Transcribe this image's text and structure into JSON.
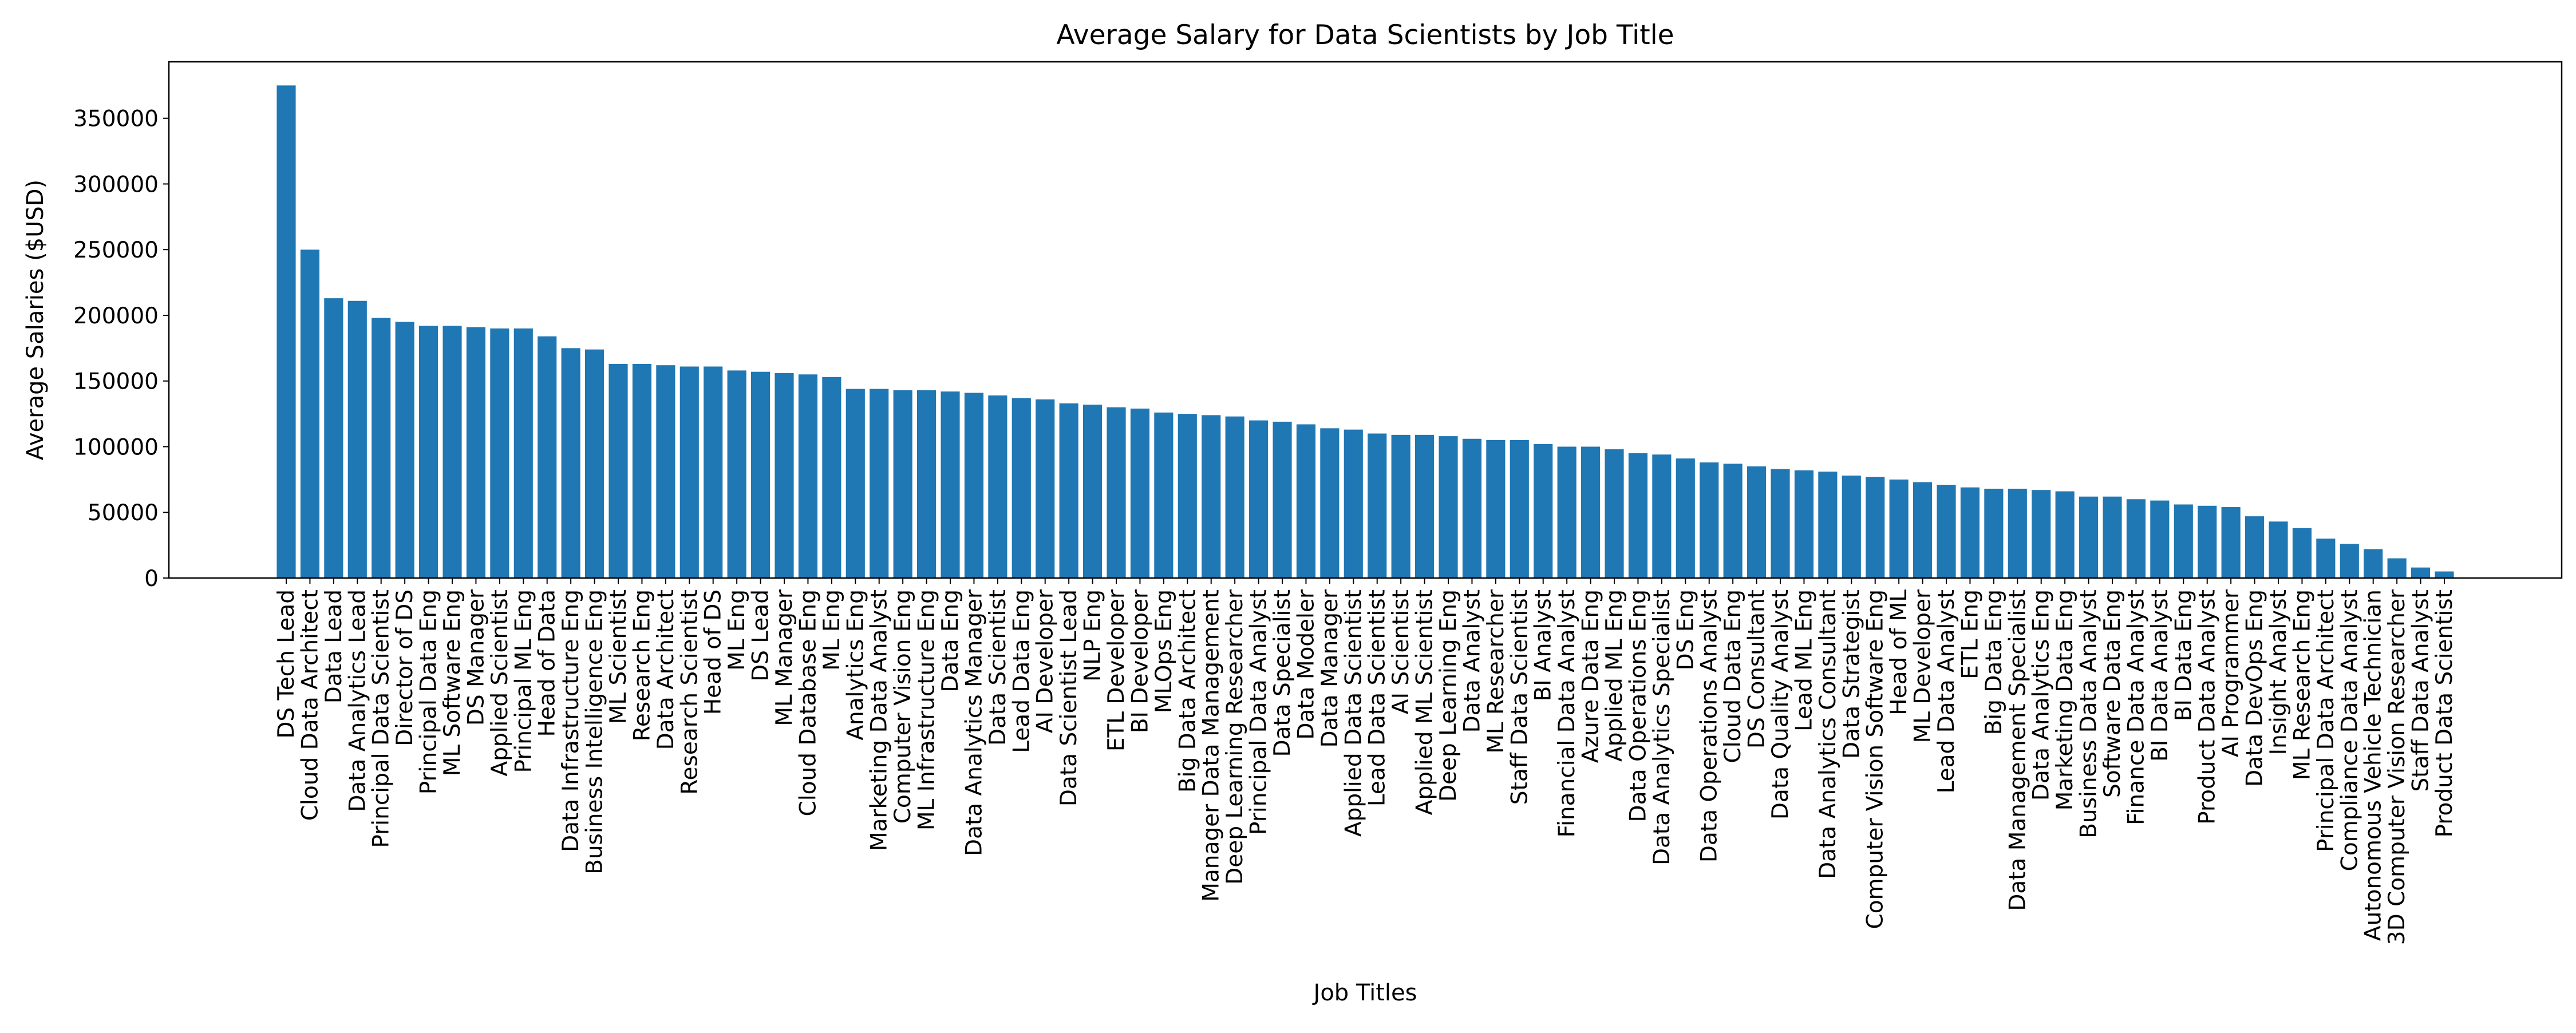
{
  "chart_data": {
    "type": "bar",
    "title": "Average Salary for Data Scientists by Job Title",
    "xlabel": "Job Titles",
    "ylabel": "Average Salaries ($USD)",
    "ylim": [
      0,
      393000
    ],
    "yticks": [
      "0",
      "50000",
      "100000",
      "150000",
      "200000",
      "250000",
      "300000",
      "350000"
    ],
    "bar_color": "#1f77b4",
    "grid": false,
    "categories": [
      "DS Tech Lead",
      "Cloud Data Architect",
      "Data Lead",
      "Data Analytics Lead",
      "Principal Data Scientist",
      "Director of DS",
      "Principal Data Eng",
      "ML Software Eng",
      "DS Manager",
      "Applied Scientist",
      "Principal ML Eng",
      "Head of Data",
      "Data Infrastructure Eng",
      "Business Intelligence Eng",
      "ML Scientist",
      "Research Eng",
      "Data Architect",
      "Research Scientist",
      "Head of DS",
      "ML Eng",
      "DS Lead",
      "ML Manager",
      "Cloud Database Eng",
      "ML Eng",
      "Analytics Eng",
      "Marketing Data Analyst",
      "Computer Vision Eng",
      "ML Infrastructure Eng",
      "Data Eng",
      "Data Analytics Manager",
      "Data Scientist",
      "Lead Data Eng",
      "AI Developer",
      "Data Scientist Lead",
      "NLP Eng",
      "ETL Developer",
      "BI Developer",
      "MLOps Eng",
      "Big Data Architect",
      "Manager Data Management",
      "Deep Learning Researcher",
      "Principal Data Analyst",
      "Data Specialist",
      "Data Modeler",
      "Data Manager",
      "Applied Data Scientist",
      "Lead Data Scientist",
      "AI Scientist",
      "Applied ML Scientist",
      "Deep Learning Eng",
      "Data Analyst",
      "ML Researcher",
      "Staff Data Scientist",
      "BI Analyst",
      "Financial Data Analyst",
      "Azure Data Eng",
      "Applied ML Eng",
      "Data Operations Eng",
      "Data Analytics Specialist",
      "DS Eng",
      "Data Operations Analyst",
      "Cloud Data Eng",
      "DS Consultant",
      "Data Quality Analyst",
      "Lead ML Eng",
      "Data Analytics Consultant",
      "Data Strategist",
      "Computer Vision Software Eng",
      "Head of ML",
      "ML Developer",
      "Lead Data Analyst",
      "ETL Eng",
      "Big Data Eng",
      "Data Management Specialist",
      "Data Analytics Eng",
      "Marketing Data Eng",
      "Business Data Analyst",
      "Software Data Eng",
      "Finance Data Analyst",
      "BI Data Analyst",
      "BI Data Eng",
      "Product Data Analyst",
      "AI Programmer",
      "Data DevOps Eng",
      "Insight Analyst",
      "ML Research Eng",
      "Principal Data Architect",
      "Compliance Data Analyst",
      "Autonomous Vehicle Technician",
      "3D Computer Vision Researcher",
      "Staff Data Analyst",
      "Product Data Scientist"
    ],
    "values": [
      375000,
      250000,
      213000,
      211000,
      198000,
      195000,
      192000,
      192000,
      191000,
      190000,
      190000,
      184000,
      175000,
      174000,
      163000,
      163000,
      162000,
      161000,
      161000,
      158000,
      157000,
      156000,
      155000,
      153000,
      144000,
      144000,
      143000,
      143000,
      142000,
      141000,
      139000,
      137000,
      136000,
      133000,
      132000,
      130000,
      129000,
      126000,
      125000,
      124000,
      123000,
      120000,
      119000,
      117000,
      114000,
      113000,
      110000,
      109000,
      109000,
      108000,
      106000,
      105000,
      105000,
      102000,
      100000,
      100000,
      98000,
      95000,
      94000,
      91000,
      88000,
      87000,
      85000,
      83000,
      82000,
      81000,
      78000,
      77000,
      75000,
      73000,
      71000,
      69000,
      68000,
      68000,
      67000,
      66000,
      62000,
      62000,
      60000,
      59000,
      56000,
      55000,
      54000,
      47000,
      43000,
      38000,
      30000,
      26000,
      22000,
      15000,
      8000,
      5000
    ]
  }
}
